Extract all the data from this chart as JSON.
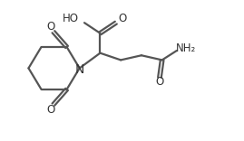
{
  "bg_color": "#ffffff",
  "line_color": "#555555",
  "text_color": "#333333",
  "line_width": 1.6,
  "font_size": 8.5,
  "figsize": [
    2.69,
    1.56
  ],
  "dpi": 100,
  "xlim": [
    0,
    10
  ],
  "ylim": [
    0,
    6
  ]
}
